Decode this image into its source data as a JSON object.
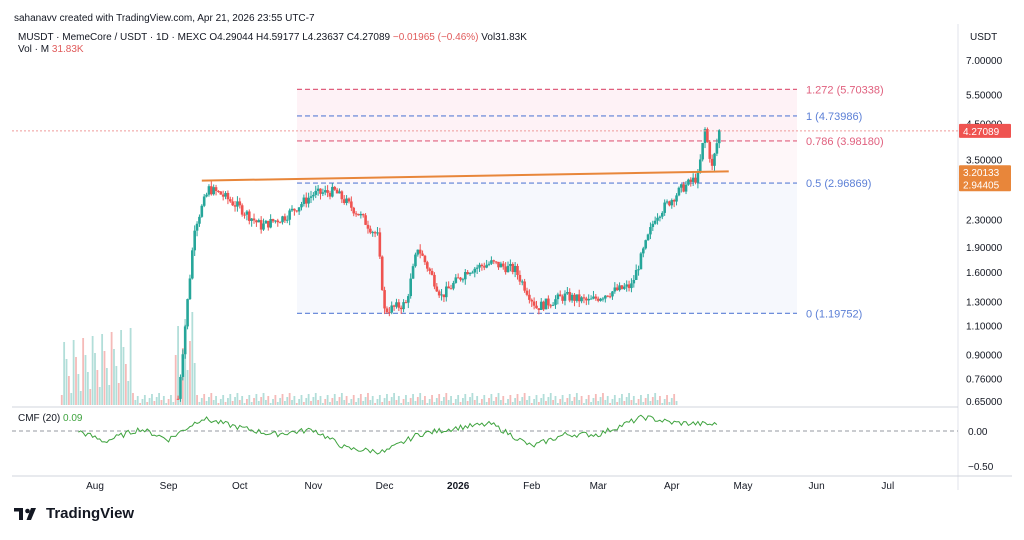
{
  "header": {
    "creator": "sahanavv created with TradingView.com, Apr 21, 2026 23:55 UTC-7"
  },
  "legend": {
    "symbol": "MUSDT · MemeCore / USDT · 1D · MEXC",
    "open": "O4.29044",
    "high": "H4.59177",
    "low": "L4.23637",
    "close": "C4.27089",
    "change": "−0.01965 (−0.46%)",
    "volume": "Vol31.83K"
  },
  "volume_label": {
    "name": "Vol · M",
    "value": "31.83K"
  },
  "cmf_label": {
    "name": "CMF (20)",
    "value": "0.09"
  },
  "footer": {
    "brand": "TradingView"
  },
  "colors": {
    "up": "#26a69a",
    "down": "#ef5350",
    "fib_pink": "#e0607e",
    "fib_blue": "#5b7fd6",
    "trend": "#e8863a",
    "cmf": "#3fa33f"
  },
  "chart_data": {
    "type": "candlestick",
    "currency_label": "USDT",
    "y_scale": "log",
    "ylim": [
      0.65,
      7.0
    ],
    "y_ticks": [
      "7.00000",
      "5.50000",
      "4.50000",
      "3.50000",
      "2.30000",
      "1.90000",
      "1.60000",
      "1.30000",
      "1.10000",
      "0.90000",
      "0.76000",
      "0.65000"
    ],
    "x_ticks": [
      "Aug",
      "Sep",
      "Oct",
      "Nov",
      "Dec",
      "2026",
      "Feb",
      "Mar",
      "Apr",
      "May",
      "Jun",
      "Jul"
    ],
    "price_tags": [
      {
        "value": "4.27089",
        "color": "#ef5350"
      },
      {
        "value": "3.20133",
        "color": "#e8863a"
      },
      {
        "value": "2.94405",
        "color": "#e8863a"
      }
    ],
    "fibonacci": [
      {
        "label": "1.272 (5.70338)",
        "level": 5.70338,
        "color": "#e0607e"
      },
      {
        "label": "1 (4.73986)",
        "level": 4.73986,
        "color": "#5b7fd6"
      },
      {
        "label": "0.786 (3.98180)",
        "level": 3.9818,
        "color": "#e0607e"
      },
      {
        "label": "0.5 (2.96869)",
        "level": 2.96869,
        "color": "#5b7fd6"
      },
      {
        "label": "0 (1.19752)",
        "level": 1.19752,
        "color": "#5b7fd6"
      }
    ],
    "trendline": {
      "start": {
        "date": "2025-09-15",
        "price": 3.02
      },
      "end": {
        "date": "2026-04-25",
        "price": 3.22
      }
    },
    "price_path": [
      {
        "date": "2025-09-05",
        "price": 0.66
      },
      {
        "date": "2025-09-08",
        "price": 1.1
      },
      {
        "date": "2025-09-12",
        "price": 2.2
      },
      {
        "date": "2025-09-18",
        "price": 2.85
      },
      {
        "date": "2025-09-23",
        "price": 2.75
      },
      {
        "date": "2025-10-01",
        "price": 2.5
      },
      {
        "date": "2025-10-10",
        "price": 2.2
      },
      {
        "date": "2025-10-20",
        "price": 2.35
      },
      {
        "date": "2025-11-01",
        "price": 2.75
      },
      {
        "date": "2025-11-10",
        "price": 2.8
      },
      {
        "date": "2025-11-20",
        "price": 2.4
      },
      {
        "date": "2025-11-28",
        "price": 2.05
      },
      {
        "date": "2025-12-01",
        "price": 1.22
      },
      {
        "date": "2025-12-10",
        "price": 1.28
      },
      {
        "date": "2025-12-15",
        "price": 1.9
      },
      {
        "date": "2025-12-25",
        "price": 1.35
      },
      {
        "date": "2026-01-05",
        "price": 1.62
      },
      {
        "date": "2026-01-15",
        "price": 1.7
      },
      {
        "date": "2026-01-25",
        "price": 1.62
      },
      {
        "date": "2026-02-03",
        "price": 1.25
      },
      {
        "date": "2026-02-15",
        "price": 1.35
      },
      {
        "date": "2026-02-25",
        "price": 1.3
      },
      {
        "date": "2026-03-05",
        "price": 1.38
      },
      {
        "date": "2026-03-15",
        "price": 1.45
      },
      {
        "date": "2026-03-25",
        "price": 2.35
      },
      {
        "date": "2026-04-05",
        "price": 2.85
      },
      {
        "date": "2026-04-12",
        "price": 3.1
      },
      {
        "date": "2026-04-15",
        "price": 4.3
      },
      {
        "date": "2026-04-18",
        "price": 3.3
      },
      {
        "date": "2026-04-21",
        "price": 4.27
      }
    ],
    "cmf": {
      "y_ticks": [
        "0.00",
        "−0.50"
      ],
      "points": [
        {
          "date": "2025-07-25",
          "value": 0.0
        },
        {
          "date": "2025-08-05",
          "value": -0.15
        },
        {
          "date": "2025-08-20",
          "value": 0.03
        },
        {
          "date": "2025-09-01",
          "value": -0.12
        },
        {
          "date": "2025-09-15",
          "value": 0.18
        },
        {
          "date": "2025-10-01",
          "value": 0.05
        },
        {
          "date": "2025-10-15",
          "value": -0.05
        },
        {
          "date": "2025-11-01",
          "value": 0.02
        },
        {
          "date": "2025-11-15",
          "value": -0.25
        },
        {
          "date": "2025-12-01",
          "value": -0.3
        },
        {
          "date": "2025-12-15",
          "value": -0.05
        },
        {
          "date": "2026-01-01",
          "value": 0.05
        },
        {
          "date": "2026-01-15",
          "value": 0.1
        },
        {
          "date": "2026-02-01",
          "value": -0.22
        },
        {
          "date": "2026-02-15",
          "value": -0.05
        },
        {
          "date": "2026-03-01",
          "value": -0.05
        },
        {
          "date": "2026-03-20",
          "value": 0.2
        },
        {
          "date": "2026-04-01",
          "value": 0.12
        },
        {
          "date": "2026-04-21",
          "value": 0.09
        }
      ]
    }
  }
}
